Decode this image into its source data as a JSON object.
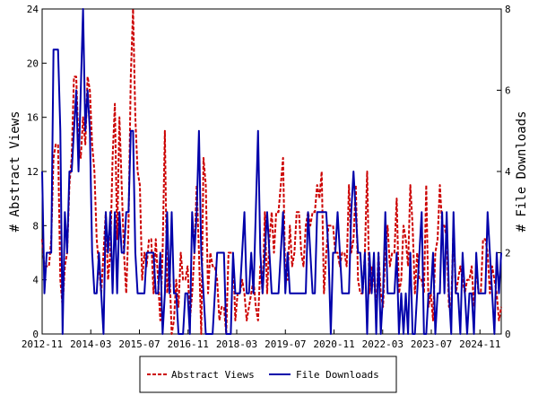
{
  "chart_data": {
    "type": "line",
    "xlabel": "",
    "ylabel_left": "# Abstract Views",
    "ylabel_right": "# File Downloads",
    "x_tick_labels": [
      "2012-11",
      "2014-03",
      "2015-07",
      "2016-11",
      "2018-03",
      "2019-07",
      "2020-11",
      "2022-03",
      "2023-07",
      "2024-11"
    ],
    "x_start": "2012-11",
    "x_end": "2025-06",
    "ylim_left": [
      0,
      24
    ],
    "yticks_left": [
      0,
      4,
      8,
      12,
      16,
      20,
      24
    ],
    "ylim_right": [
      0,
      8
    ],
    "yticks_right": [
      0,
      2,
      4,
      6,
      8
    ],
    "grid": false,
    "legend_position": "bottom",
    "series": [
      {
        "name": "Abstract Views",
        "axis": "left",
        "color": "#cc0000",
        "dash": true,
        "values": [
          7,
          5,
          5,
          5,
          7,
          13,
          14,
          14,
          4,
          2,
          5,
          6,
          11,
          13,
          19,
          19,
          14,
          13,
          16,
          14,
          19,
          18,
          14,
          12,
          7,
          5,
          3,
          6,
          9,
          4,
          6,
          13,
          17,
          7,
          16,
          11,
          6,
          3,
          8,
          19,
          24,
          16,
          12,
          11,
          4,
          6,
          5,
          7,
          7,
          3,
          7,
          4,
          1,
          6,
          15,
          3,
          5,
          0,
          1,
          4,
          2,
          6,
          4,
          4,
          5,
          1,
          3,
          6,
          11,
          6,
          0,
          13,
          11,
          3,
          6,
          5,
          5,
          4,
          1,
          2,
          2,
          0,
          6,
          6,
          6,
          1,
          3,
          3,
          4,
          3,
          1,
          2,
          3,
          4,
          2,
          1,
          5,
          3,
          9,
          3,
          7,
          9,
          6,
          9,
          9,
          11,
          13,
          4,
          4,
          8,
          5,
          6,
          9,
          9,
          6,
          5,
          8,
          9,
          8,
          9,
          9,
          11,
          10,
          12,
          3,
          6,
          8,
          8,
          8,
          6,
          6,
          5,
          6,
          6,
          5,
          11,
          6,
          7,
          11,
          4,
          3,
          3,
          6,
          12,
          3,
          5,
          4,
          2,
          6,
          3,
          2,
          6,
          8,
          5,
          6,
          6,
          10,
          3,
          4,
          8,
          7,
          5,
          11,
          8,
          3,
          6,
          4,
          4,
          3,
          11,
          2,
          3,
          1,
          6,
          7,
          11,
          8,
          8,
          7,
          2,
          2,
          8,
          3,
          4,
          5,
          4,
          3,
          4,
          4,
          5,
          2,
          5,
          3,
          3,
          7,
          7,
          6,
          3,
          5,
          4,
          3,
          1,
          2
        ]
      },
      {
        "name": "File Downloads",
        "axis": "right",
        "color": "#0000aa",
        "dash": false,
        "values": [
          4,
          1,
          2,
          2,
          2,
          7,
          7,
          7,
          5,
          0,
          3,
          2,
          4,
          4,
          5,
          6,
          4,
          6,
          8,
          5,
          6,
          5,
          2,
          1,
          1,
          2,
          1,
          0,
          3,
          2,
          3,
          1,
          3,
          1,
          3,
          2,
          2,
          3,
          3,
          5,
          5,
          2,
          1,
          1,
          1,
          1,
          2,
          2,
          2,
          2,
          1,
          1,
          2,
          0,
          1,
          3,
          1,
          3,
          1,
          1,
          0,
          0,
          0,
          1,
          1,
          0,
          3,
          2,
          3,
          5,
          2,
          1,
          0,
          0,
          0,
          0,
          1,
          2,
          2,
          2,
          2,
          0,
          0,
          0,
          2,
          1,
          1,
          1,
          2,
          3,
          1,
          1,
          2,
          1,
          3,
          5,
          2,
          1,
          2,
          3,
          2,
          1,
          1,
          1,
          1,
          2,
          3,
          1,
          2,
          1,
          1,
          1,
          1,
          1,
          1,
          1,
          1,
          3,
          2,
          1,
          1,
          3,
          3,
          3,
          3,
          3,
          2,
          0,
          2,
          2,
          3,
          2,
          1,
          1,
          1,
          1,
          3,
          4,
          3,
          2,
          2,
          1,
          2,
          0,
          2,
          1,
          2,
          0,
          2,
          0,
          1,
          3,
          1,
          1,
          1,
          1,
          2,
          0,
          1,
          0,
          1,
          0,
          2,
          0,
          0,
          1,
          2,
          3,
          0,
          0,
          1,
          1,
          2,
          0,
          1,
          1,
          3,
          1,
          3,
          1,
          0,
          3,
          1,
          1,
          0,
          2,
          1,
          0,
          1,
          1,
          0,
          2,
          1,
          1,
          1,
          1,
          3,
          2,
          1,
          0,
          2,
          1,
          2
        ]
      }
    ]
  }
}
